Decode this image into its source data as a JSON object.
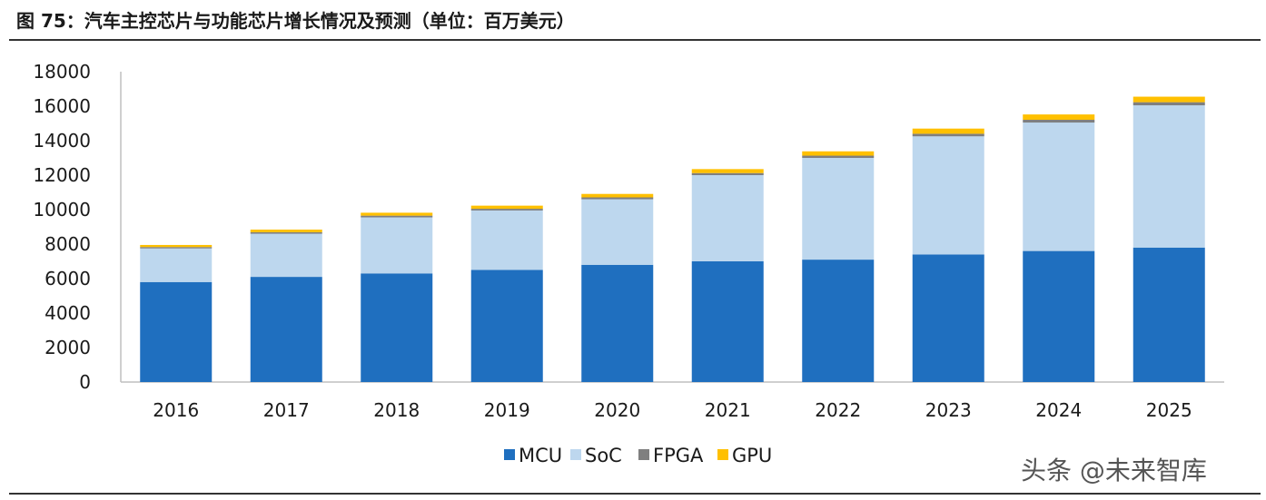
{
  "figure_title": "图 75：汽车主控芯片与功能芯片增长情况及预测（单位：百万美元）",
  "watermark": "头条 @未来智库",
  "chart_data": {
    "type": "bar",
    "stacked": true,
    "title": "",
    "xlabel": "",
    "ylabel": "",
    "categories": [
      "2016",
      "2017",
      "2018",
      "2019",
      "2020",
      "2021",
      "2022",
      "2023",
      "2024",
      "2025"
    ],
    "ylim": [
      0,
      18000
    ],
    "yticks": [
      0,
      2000,
      4000,
      6000,
      8000,
      10000,
      12000,
      14000,
      16000,
      18000
    ],
    "grid": false,
    "legend_position": "bottom",
    "series": [
      {
        "name": "MCU",
        "color": "#1F6FBF",
        "values": [
          5800,
          6100,
          6300,
          6500,
          6800,
          7000,
          7100,
          7400,
          7600,
          7800
        ]
      },
      {
        "name": "SoC",
        "color": "#BDD7EE",
        "values": [
          1950,
          2500,
          3250,
          3450,
          3800,
          5000,
          5900,
          6850,
          7450,
          8250
        ]
      },
      {
        "name": "FPGA",
        "color": "#7F7F7F",
        "values": [
          80,
          90,
          100,
          100,
          110,
          120,
          130,
          150,
          160,
          180
        ]
      },
      {
        "name": "GPU",
        "color": "#FFC000",
        "values": [
          120,
          150,
          170,
          180,
          200,
          230,
          250,
          300,
          310,
          320
        ]
      }
    ]
  }
}
